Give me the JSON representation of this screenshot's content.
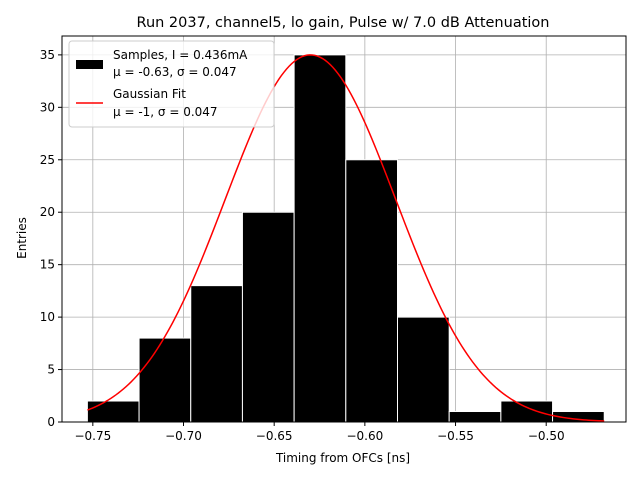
{
  "chart_data": {
    "type": "bar",
    "title": "Run 2037, channel5, lo gain, Pulse w/ 7.0 dB Attenuation",
    "xlabel": "Timing from OFCs [ns]",
    "ylabel": "Entries",
    "xlim": [
      -0.767,
      -0.456
    ],
    "ylim": [
      0,
      36.8
    ],
    "grid": true,
    "legend_position": "top-left",
    "xticks": [
      -0.75,
      -0.7,
      -0.65,
      -0.6,
      -0.55,
      -0.5
    ],
    "xtick_labels": [
      "−0.75",
      "−0.70",
      "−0.65",
      "−0.60",
      "−0.55",
      "−0.50"
    ],
    "yticks": [
      0,
      5,
      10,
      15,
      20,
      25,
      30,
      35
    ],
    "ytick_labels": [
      "0",
      "5",
      "10",
      "15",
      "20",
      "25",
      "30",
      "35"
    ],
    "histogram": {
      "name_line1": "Samples, I = 0.436mA",
      "name_line2": "μ = -0.63, σ = 0.047",
      "color": "#000000",
      "edge_color": "#ffffff",
      "bin_edges": [
        -0.753,
        -0.7245,
        -0.696,
        -0.6675,
        -0.639,
        -0.6105,
        -0.582,
        -0.5535,
        -0.525,
        -0.4965,
        -0.468
      ],
      "counts": [
        2,
        8,
        13,
        20,
        35,
        25,
        10,
        1,
        2,
        1
      ]
    },
    "fit": {
      "name_line1": "Gaussian Fit",
      "name_line2": "μ = -1, σ = 0.047",
      "color": "#ff0000",
      "mu": -0.63,
      "sigma": 0.047,
      "amplitude": 35,
      "x_range": [
        -0.753,
        -0.468
      ]
    }
  }
}
